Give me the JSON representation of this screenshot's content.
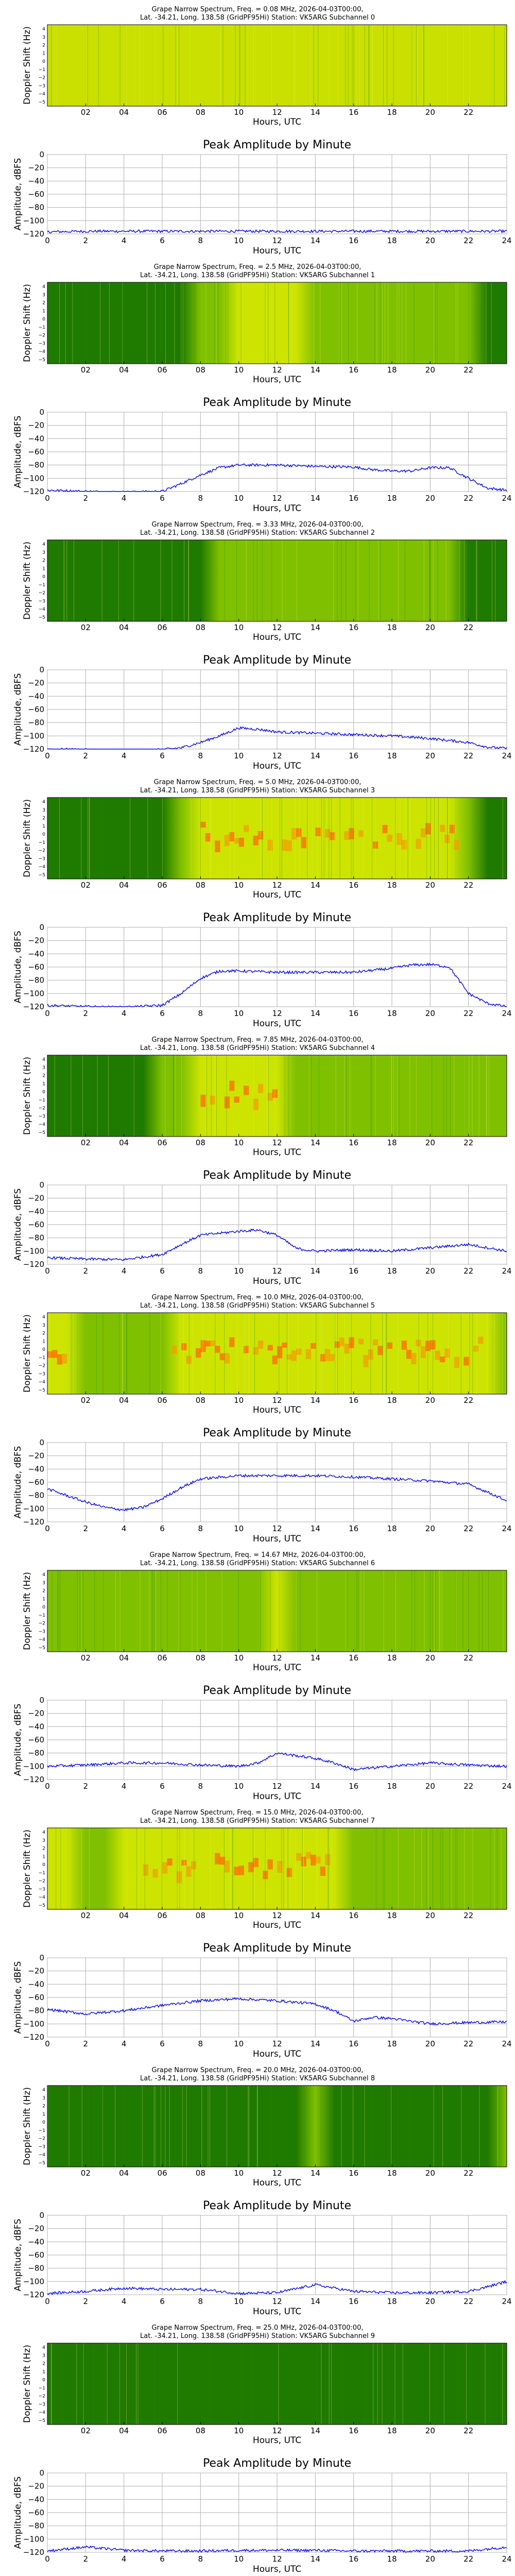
{
  "spectrogram_xlabel": "Hours, UTC",
  "spectrogram_ylabel": "Doppler Shift (Hz)",
  "amplitude_title": "Peak Amplitude by Minute",
  "amplitude_xlabel": "Hours, UTC",
  "amplitude_ylabel": "Amplitude, dBFS",
  "spectrogram_xticks": [
    "02",
    "04",
    "06",
    "08",
    "10",
    "12",
    "14",
    "16",
    "18",
    "20",
    "22"
  ],
  "amplitude_xticks": [
    "0",
    "2",
    "4",
    "6",
    "8",
    "10",
    "12",
    "14",
    "16",
    "18",
    "20",
    "22",
    "24"
  ],
  "amplitude_yticks": [
    "0",
    "−20",
    "−40",
    "−60",
    "−80",
    "−100",
    "−120"
  ],
  "doppler_ticks": [
    "4",
    "3",
    "2",
    "1",
    "0",
    "−1",
    "−2",
    "−3",
    "−4",
    "−5"
  ],
  "colors": {
    "spectrum_low": "#1f7a00",
    "spectrum_mid": "#c8e000",
    "spectrum_high": "#ff6a00",
    "trace": "#0000ee"
  },
  "chart_data": [
    {
      "type": "heatmap",
      "title": "Grape Narrow Spectrum, Freq. = 0.08 MHz, 2026-04-03T00:00,",
      "subtitle": "Lat. -34.21, Long. 138.58 (GridPF95Hi) Station: VK5ARG Subchannel 0",
      "xlabel": "Hours, UTC",
      "ylabel": "Doppler Shift (Hz)",
      "xlim": [
        0,
        24
      ],
      "ylim": [
        -5,
        5
      ],
      "amplitude": {
        "type": "line",
        "title": "Peak Amplitude by Minute",
        "xlim": [
          0,
          24
        ],
        "ylim": [
          -120,
          0
        ],
        "x": [
          0,
          2,
          4,
          6,
          8,
          10,
          12,
          14,
          16,
          18,
          20,
          22,
          24
        ],
        "y": [
          -117,
          -116,
          -116,
          -116,
          -116,
          -116,
          -116,
          -116,
          -116,
          -116,
          -116,
          -116,
          -116
        ]
      }
    },
    {
      "type": "heatmap",
      "title": "Grape Narrow Spectrum, Freq. = 2.5 MHz, 2026-04-03T00:00,",
      "subtitle": "Lat. -34.21, Long. 138.58 (GridPF95Hi) Station: VK5ARG Subchannel 1",
      "xlabel": "Hours, UTC",
      "ylabel": "Doppler Shift (Hz)",
      "xlim": [
        0,
        24
      ],
      "ylim": [
        -5,
        5
      ],
      "amplitude": {
        "type": "line",
        "title": "Peak Amplitude by Minute",
        "xlim": [
          0,
          24
        ],
        "ylim": [
          -120,
          0
        ],
        "x": [
          0,
          2,
          4,
          6,
          7,
          8,
          9,
          10,
          12,
          14,
          16,
          17,
          18,
          19,
          20,
          21,
          22,
          23,
          24
        ],
        "y": [
          -118,
          -120,
          -121,
          -120,
          -108,
          -95,
          -84,
          -80,
          -80,
          -82,
          -83,
          -87,
          -89,
          -89,
          -84,
          -84,
          -100,
          -115,
          -118
        ]
      }
    },
    {
      "type": "heatmap",
      "title": "Grape Narrow Spectrum, Freq. = 3.33 MHz, 2026-04-03T00:00,",
      "subtitle": "Lat. -34.21, Long. 138.58 (GridPF95Hi) Station: VK5ARG Subchannel 2",
      "xlabel": "Hours, UTC",
      "ylabel": "Doppler Shift (Hz)",
      "xlim": [
        0,
        24
      ],
      "ylim": [
        -5,
        5
      ],
      "amplitude": {
        "type": "line",
        "title": "Peak Amplitude by Minute",
        "xlim": [
          0,
          24
        ],
        "ylim": [
          -120,
          0
        ],
        "x": [
          0,
          2,
          4,
          6,
          7,
          8,
          9,
          10,
          11,
          12,
          14,
          16,
          18,
          20,
          22,
          23,
          24
        ],
        "y": [
          -120,
          -121,
          -122,
          -121,
          -118,
          -110,
          -100,
          -88,
          -90,
          -94,
          -96,
          -98,
          -100,
          -104,
          -110,
          -117,
          -119
        ]
      }
    },
    {
      "type": "heatmap",
      "title": "Grape Narrow Spectrum, Freq. = 5.0 MHz, 2026-04-03T00:00,",
      "subtitle": "Lat. -34.21, Long. 138.58 (GridPF95Hi) Station: VK5ARG Subchannel 3",
      "xlabel": "Hours, UTC",
      "ylabel": "Doppler Shift (Hz)",
      "xlim": [
        0,
        24
      ],
      "ylim": [
        -5,
        5
      ],
      "amplitude": {
        "type": "line",
        "title": "Peak Amplitude by Minute",
        "xlim": [
          0,
          24
        ],
        "ylim": [
          -120,
          0
        ],
        "x": [
          0,
          2,
          4,
          6,
          7,
          8,
          9,
          10,
          12,
          14,
          16,
          18,
          19,
          20,
          21,
          22,
          23,
          24
        ],
        "y": [
          -118,
          -120,
          -121,
          -118,
          -100,
          -77,
          -66,
          -66,
          -68,
          -68,
          -68,
          -62,
          -57,
          -56,
          -60,
          -100,
          -115,
          -120
        ]
      }
    },
    {
      "type": "heatmap",
      "title": "Grape Narrow Spectrum, Freq. = 7.85 MHz, 2026-04-03T00:00,",
      "subtitle": "Lat. -34.21, Long. 138.58 (GridPF95Hi) Station: VK5ARG Subchannel 4",
      "xlabel": "Hours, UTC",
      "ylabel": "Doppler Shift (Hz)",
      "xlim": [
        0,
        24
      ],
      "ylim": [
        -5,
        5
      ],
      "amplitude": {
        "type": "line",
        "title": "Peak Amplitude by Minute",
        "xlim": [
          0,
          24
        ],
        "ylim": [
          -120,
          0
        ],
        "x": [
          0,
          2,
          4,
          6,
          7,
          8,
          10,
          11,
          12,
          13,
          14,
          16,
          18,
          20,
          22,
          24
        ],
        "y": [
          -110,
          -112,
          -113,
          -105,
          -90,
          -76,
          -70,
          -68,
          -76,
          -96,
          -100,
          -98,
          -100,
          -95,
          -90,
          -100
        ]
      }
    },
    {
      "type": "heatmap",
      "title": "Grape Narrow Spectrum, Freq. = 10.0 MHz, 2026-04-03T00:00,",
      "subtitle": "Lat. -34.21, Long. 138.58 (GridPF95Hi) Station: VK5ARG Subchannel 5",
      "xlabel": "Hours, UTC",
      "ylabel": "Doppler Shift (Hz)",
      "xlim": [
        0,
        24
      ],
      "ylim": [
        -5,
        5
      ],
      "amplitude": {
        "type": "line",
        "title": "Peak Amplitude by Minute",
        "xlim": [
          0,
          24
        ],
        "ylim": [
          -120,
          0
        ],
        "x": [
          0,
          2,
          3,
          4,
          5,
          6,
          7,
          8,
          10,
          12,
          14,
          16,
          18,
          20,
          22,
          23,
          24
        ],
        "y": [
          -70,
          -90,
          -98,
          -102,
          -98,
          -85,
          -68,
          -55,
          -50,
          -50,
          -50,
          -52,
          -55,
          -58,
          -63,
          -75,
          -88
        ]
      }
    },
    {
      "type": "heatmap",
      "title": "Grape Narrow Spectrum, Freq. = 14.67 MHz, 2026-04-03T00:00,",
      "subtitle": "Lat. -34.21, Long. 138.58 (GridPF95Hi) Station: VK5ARG Subchannel 6",
      "xlabel": "Hours, UTC",
      "ylabel": "Doppler Shift (Hz)",
      "xlim": [
        0,
        24
      ],
      "ylim": [
        -5,
        5
      ],
      "amplitude": {
        "type": "line",
        "title": "Peak Amplitude by Minute",
        "xlim": [
          0,
          24
        ],
        "ylim": [
          -120,
          0
        ],
        "x": [
          0,
          2,
          4,
          6,
          8,
          10,
          11,
          12,
          13,
          14,
          15,
          16,
          18,
          20,
          22,
          24
        ],
        "y": [
          -100,
          -98,
          -95,
          -95,
          -98,
          -100,
          -95,
          -80,
          -84,
          -88,
          -95,
          -105,
          -100,
          -95,
          -98,
          -100
        ]
      }
    },
    {
      "type": "heatmap",
      "title": "Grape Narrow Spectrum, Freq. = 15.0 MHz, 2026-04-03T00:00,",
      "subtitle": "Lat. -34.21, Long. 138.58 (GridPF95Hi) Station: VK5ARG Subchannel 7",
      "xlabel": "Hours, UTC",
      "ylabel": "Doppler Shift (Hz)",
      "xlim": [
        0,
        24
      ],
      "ylim": [
        -5,
        5
      ],
      "amplitude": {
        "type": "line",
        "title": "Peak Amplitude by Minute",
        "xlim": [
          0,
          24
        ],
        "ylim": [
          -120,
          0
        ],
        "x": [
          0,
          2,
          4,
          6,
          8,
          10,
          12,
          14,
          15,
          16,
          17,
          18,
          20,
          22,
          24
        ],
        "y": [
          -78,
          -85,
          -80,
          -72,
          -65,
          -62,
          -65,
          -70,
          -80,
          -96,
          -90,
          -92,
          -100,
          -98,
          -97
        ]
      }
    },
    {
      "type": "heatmap",
      "title": "Grape Narrow Spectrum, Freq. = 20.0 MHz, 2026-04-03T00:00,",
      "subtitle": "Lat. -34.21, Long. 138.58 (GridPF95Hi) Station: VK5ARG Subchannel 8",
      "xlabel": "Hours, UTC",
      "ylabel": "Doppler Shift (Hz)",
      "xlim": [
        0,
        24
      ],
      "ylim": [
        -5,
        5
      ],
      "amplitude": {
        "type": "line",
        "title": "Peak Amplitude by Minute",
        "xlim": [
          0,
          24
        ],
        "ylim": [
          -120,
          0
        ],
        "x": [
          0,
          2,
          4,
          6,
          8,
          10,
          12,
          14,
          16,
          18,
          20,
          22,
          23,
          24
        ],
        "y": [
          -118,
          -115,
          -110,
          -112,
          -112,
          -118,
          -117,
          -105,
          -115,
          -117,
          -117,
          -115,
          -108,
          -100
        ]
      }
    },
    {
      "type": "heatmap",
      "title": "Grape Narrow Spectrum, Freq. = 25.0 MHz, 2026-04-03T00:00,",
      "subtitle": "Lat. -34.21, Long. 138.58 (GridPF95Hi) Station: VK5ARG Subchannel 9",
      "xlabel": "Hours, UTC",
      "ylabel": "Doppler Shift (Hz)",
      "xlim": [
        0,
        24
      ],
      "ylim": [
        -5,
        5
      ],
      "amplitude": {
        "type": "line",
        "title": "Peak Amplitude by Minute",
        "xlim": [
          0,
          24
        ],
        "ylim": [
          -120,
          0
        ],
        "x": [
          0,
          2,
          4,
          6,
          8,
          10,
          12,
          14,
          16,
          18,
          20,
          22,
          24
        ],
        "y": [
          -118,
          -112,
          -117,
          -118,
          -118,
          -117,
          -117,
          -117,
          -118,
          -118,
          -118,
          -118,
          -112
        ]
      }
    }
  ]
}
